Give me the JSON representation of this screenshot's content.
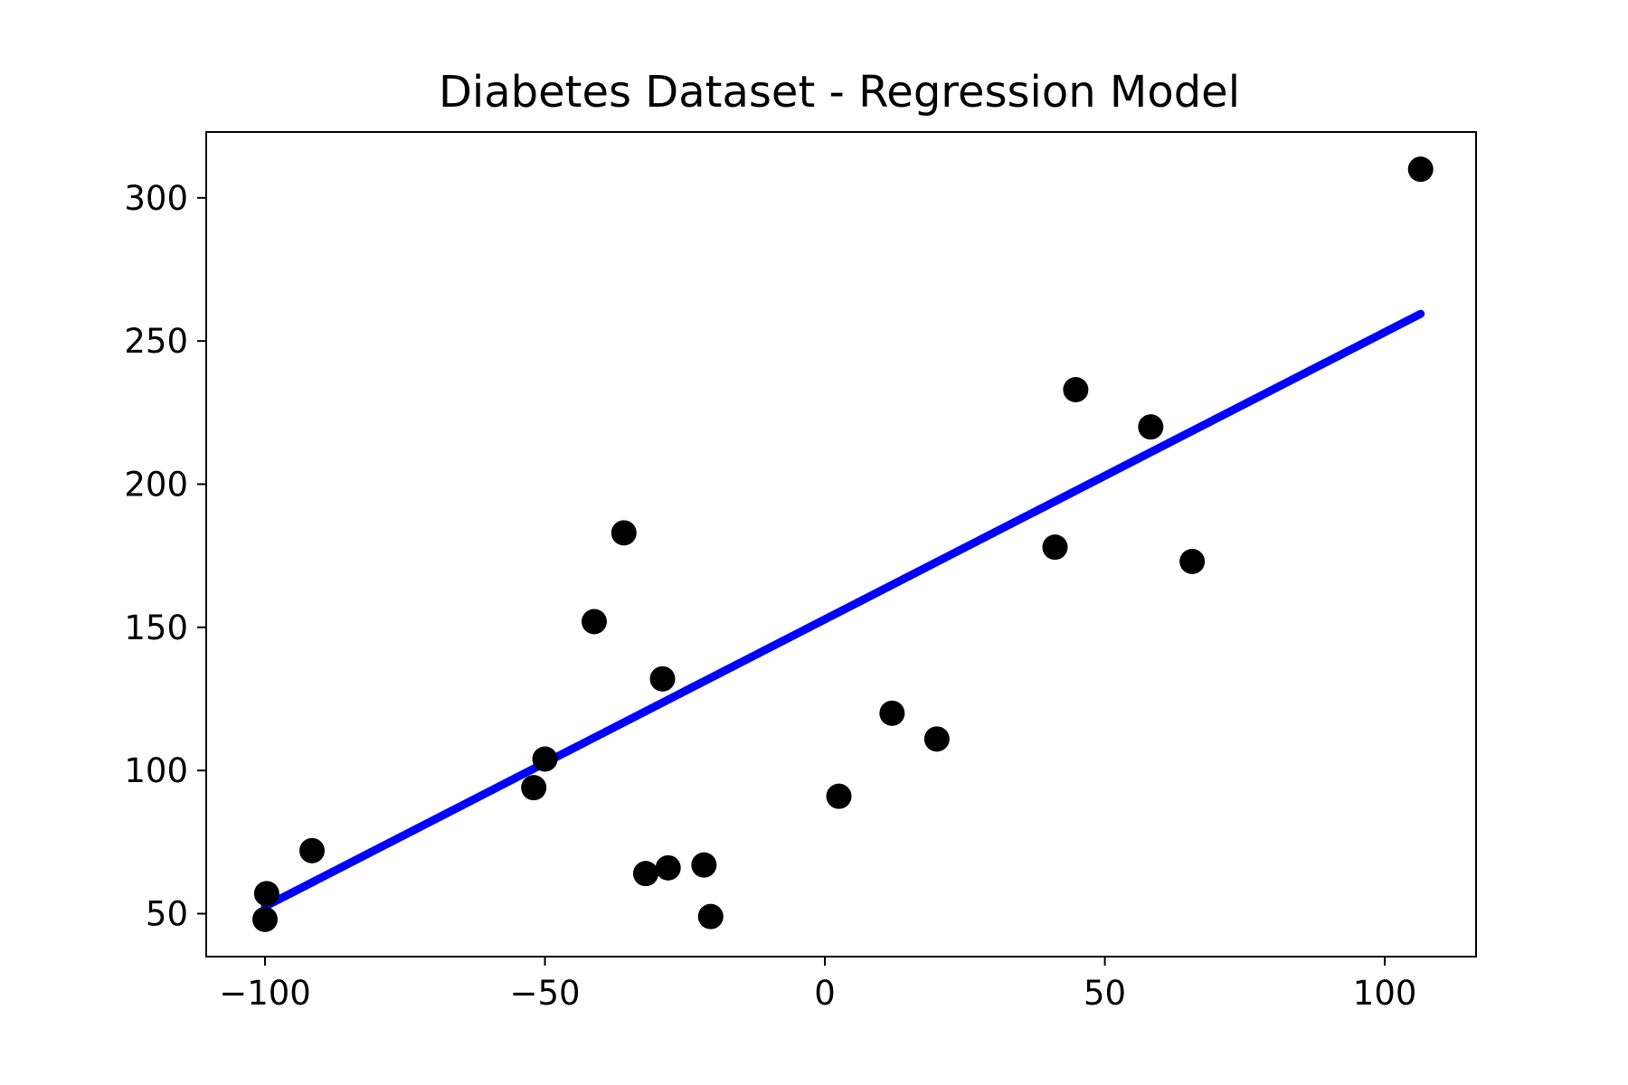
{
  "chart_data": {
    "type": "scatter",
    "title": "Diabetes Dataset - Regression Model",
    "xlabel": "",
    "ylabel": "",
    "xlim": [
      -110.5,
      116.3
    ],
    "ylim": [
      35,
      323
    ],
    "x_ticks": [
      -100,
      -50,
      0,
      50,
      100
    ],
    "x_tick_labels": [
      "−100",
      "−50",
      "0",
      "50",
      "100"
    ],
    "y_ticks": [
      50,
      100,
      150,
      200,
      250,
      300
    ],
    "y_tick_labels": [
      "50",
      "100",
      "150",
      "200",
      "250",
      "300"
    ],
    "grid": false,
    "legend": "none",
    "series": [
      {
        "kind": "scatter",
        "color": "#000000",
        "x": [
          106.4,
          44.8,
          58.2,
          41.1,
          65.6,
          -35.9,
          -41.2,
          -29.0,
          12.0,
          20.0,
          2.5,
          -50.0,
          -52.0,
          -91.6,
          -99.7,
          -100.0,
          -32.0,
          -28.0,
          -21.6,
          -20.4
        ],
        "y": [
          310,
          233,
          220,
          178,
          173,
          183,
          152,
          132,
          120,
          111,
          91,
          104,
          94,
          72,
          57,
          48,
          64,
          66,
          67,
          49
        ]
      },
      {
        "kind": "line",
        "color": "#0000ff",
        "x": [
          -100.0,
          106.4
        ],
        "y": [
          52.5,
          259.5
        ]
      }
    ]
  }
}
